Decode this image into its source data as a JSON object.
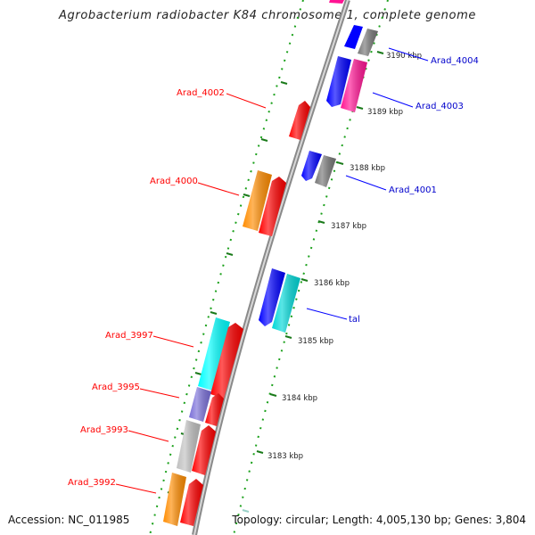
{
  "title": "Agrobacterium radiobacter K84 chromosome 1, complete genome",
  "accession": "Accession: NC_011985",
  "summary": "Topology: circular; Length: 4,005,130 bp; Genes: 3,804",
  "kbp_ticks": [
    "3190 kbp",
    "3189 kbp",
    "3188 kbp",
    "3187 kbp",
    "3186 kbp",
    "3185 kbp",
    "3184 kbp",
    "3183 kbp"
  ],
  "genes_left": [
    "Arad_4002",
    "Arad_4000",
    "Arad_3997",
    "Arad_3995",
    "Arad_3993",
    "Arad_3992"
  ],
  "genes_right": [
    "Arad_4004",
    "Arad_4003",
    "Arad_4001",
    "tal"
  ],
  "colors": {
    "red": "#ff0000",
    "blue": "#0000ff",
    "magenta": "#ff1493",
    "gray": "#777777",
    "orange": "#ff8c00",
    "cyan": "#00d8d8",
    "aqua": "#00ffff",
    "slate": "#7a6fd8",
    "silver": "#c0c0c0",
    "tick_green": "#1a7a1a",
    "backbone": "#8a8a8a"
  }
}
